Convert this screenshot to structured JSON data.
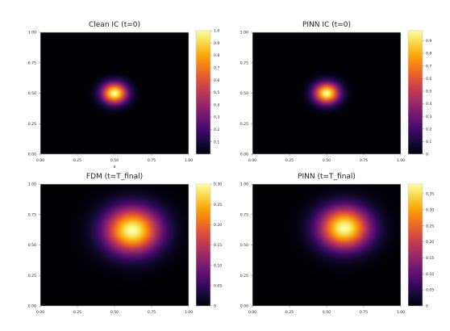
{
  "chart_data": [
    {
      "type": "heatmap",
      "title": "Clean IC (t=0)",
      "xlabel": "x",
      "ylabel": "",
      "xlim": [
        0,
        1
      ],
      "ylim": [
        0,
        1
      ],
      "x_ticks": [
        "0.00",
        "0.25",
        "0.50",
        "0.75",
        "1.00"
      ],
      "y_ticks": [
        "0.00",
        "0.25",
        "0.50",
        "0.75",
        "1.00"
      ],
      "colormap": "inferno",
      "colorbar_range": [
        0,
        1.0
      ],
      "colorbar_ticks": [
        "0.1",
        "0.2",
        "0.3",
        "0.4",
        "0.5",
        "0.6",
        "0.7",
        "0.8",
        "0.9",
        "1.0"
      ],
      "field": {
        "center_x": 0.5,
        "center_y": 0.5,
        "width": 0.06,
        "peak": 1.0
      }
    },
    {
      "type": "heatmap",
      "title": "PINN IC (t=0)",
      "xlabel": "",
      "ylabel": "",
      "xlim": [
        0,
        1
      ],
      "ylim": [
        0,
        1
      ],
      "x_ticks": [
        "0.00",
        "0.25",
        "0.50",
        "0.75",
        "1.00"
      ],
      "y_ticks": [
        "0.00",
        "0.25",
        "0.50",
        "0.75",
        "1.00"
      ],
      "colormap": "inferno",
      "colorbar_range": [
        0,
        0.98
      ],
      "colorbar_ticks": [
        "0",
        "0.1",
        "0.2",
        "0.3",
        "0.4",
        "0.5",
        "0.6",
        "0.7",
        "0.8",
        "0.9"
      ],
      "field": {
        "center_x": 0.5,
        "center_y": 0.5,
        "width": 0.06,
        "peak": 0.98
      }
    },
    {
      "type": "heatmap",
      "title": "FDM (t=T_final)",
      "xlabel": "",
      "ylabel": "",
      "xlim": [
        0,
        1
      ],
      "ylim": [
        0,
        1
      ],
      "x_ticks": [
        "0.00",
        "0.25",
        "0.50",
        "0.75",
        "1.00"
      ],
      "y_ticks": [
        "0.00",
        "0.25",
        "0.50",
        "0.75",
        "1.00"
      ],
      "colormap": "inferno",
      "colorbar_range": [
        0,
        0.3
      ],
      "colorbar_ticks": [
        "0",
        "0.05",
        "0.10",
        "0.15",
        "0.20",
        "0.25",
        "0.30"
      ],
      "field": {
        "center_x": 0.62,
        "center_y": 0.62,
        "width": 0.13,
        "peak": 0.3
      }
    },
    {
      "type": "heatmap",
      "title": "PINN (t=T_final)",
      "xlabel": "",
      "ylabel": "",
      "xlim": [
        0,
        1
      ],
      "ylim": [
        0,
        1
      ],
      "x_ticks": [
        "0.00",
        "0.25",
        "0.50",
        "0.75",
        "1.00"
      ],
      "y_ticks": [
        "0.00",
        "0.25",
        "0.50",
        "0.75",
        "1.00"
      ],
      "colormap": "inferno",
      "colorbar_range": [
        0,
        0.38
      ],
      "colorbar_ticks": [
        "0",
        "0.05",
        "0.10",
        "0.15",
        "0.20",
        "0.25",
        "0.30",
        "0.35"
      ],
      "field": {
        "center_x": 0.62,
        "center_y": 0.64,
        "width": 0.12,
        "peak": 0.38
      }
    }
  ]
}
